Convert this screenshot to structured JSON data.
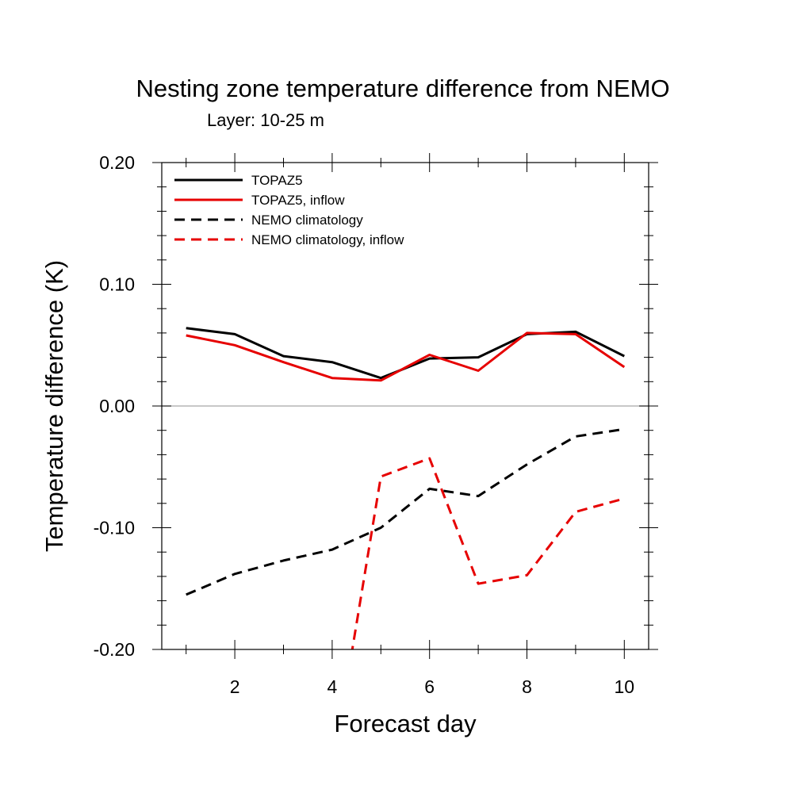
{
  "chart_data": {
    "type": "line",
    "title": "Nesting zone temperature difference from NEMO",
    "subtitle": "Layer: 10-25 m",
    "xlabel": "Forecast day",
    "ylabel": "Temperature difference (K)",
    "xlim": [
      0.5,
      10.5
    ],
    "ylim": [
      -0.2,
      0.2
    ],
    "xticks": [
      2,
      4,
      6,
      8,
      10
    ],
    "xtick_labels": [
      "2",
      "4",
      "6",
      "8",
      "10"
    ],
    "yticks": [
      -0.2,
      -0.1,
      0.0,
      0.1,
      0.2
    ],
    "ytick_labels": [
      "-0.20",
      "-0.10",
      "0.00",
      "0.10",
      "0.20"
    ],
    "zero_line": true,
    "legend_position": "top-left",
    "x": [
      1,
      2,
      3,
      4,
      5,
      6,
      7,
      8,
      9,
      10
    ],
    "series": [
      {
        "name": "TOPAZ5",
        "color": "#000000",
        "dash": "solid",
        "values": [
          0.064,
          0.059,
          0.041,
          0.036,
          0.023,
          0.039,
          0.04,
          0.059,
          0.061,
          0.041
        ]
      },
      {
        "name": "TOPAZ5, inflow",
        "color": "#e60000",
        "dash": "solid",
        "values": [
          0.058,
          0.05,
          0.036,
          0.023,
          0.021,
          0.042,
          0.029,
          0.06,
          0.059,
          0.032
        ]
      },
      {
        "name": "NEMO climatology",
        "color": "#000000",
        "dash": "dashed",
        "values": [
          -0.155,
          -0.138,
          -0.127,
          -0.118,
          -0.1,
          -0.068,
          -0.074,
          -0.048,
          -0.025,
          -0.019
        ]
      },
      {
        "name": "NEMO climatology, inflow",
        "color": "#e60000",
        "dash": "dashed",
        "values": [
          null,
          null,
          null,
          -0.3,
          -0.058,
          -0.043,
          -0.146,
          -0.139,
          -0.087,
          -0.076
        ]
      }
    ]
  }
}
